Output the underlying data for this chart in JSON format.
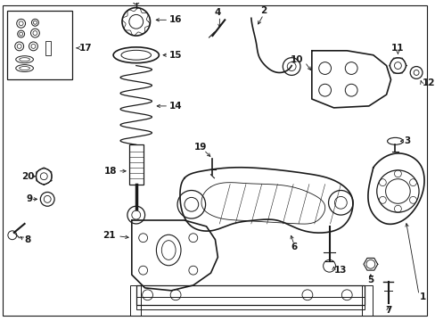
{
  "background_color": "#ffffff",
  "line_color": "#1a1a1a",
  "figsize": [
    4.89,
    3.6
  ],
  "dpi": 100,
  "border": [
    0.01,
    0.01,
    0.98,
    0.98
  ]
}
